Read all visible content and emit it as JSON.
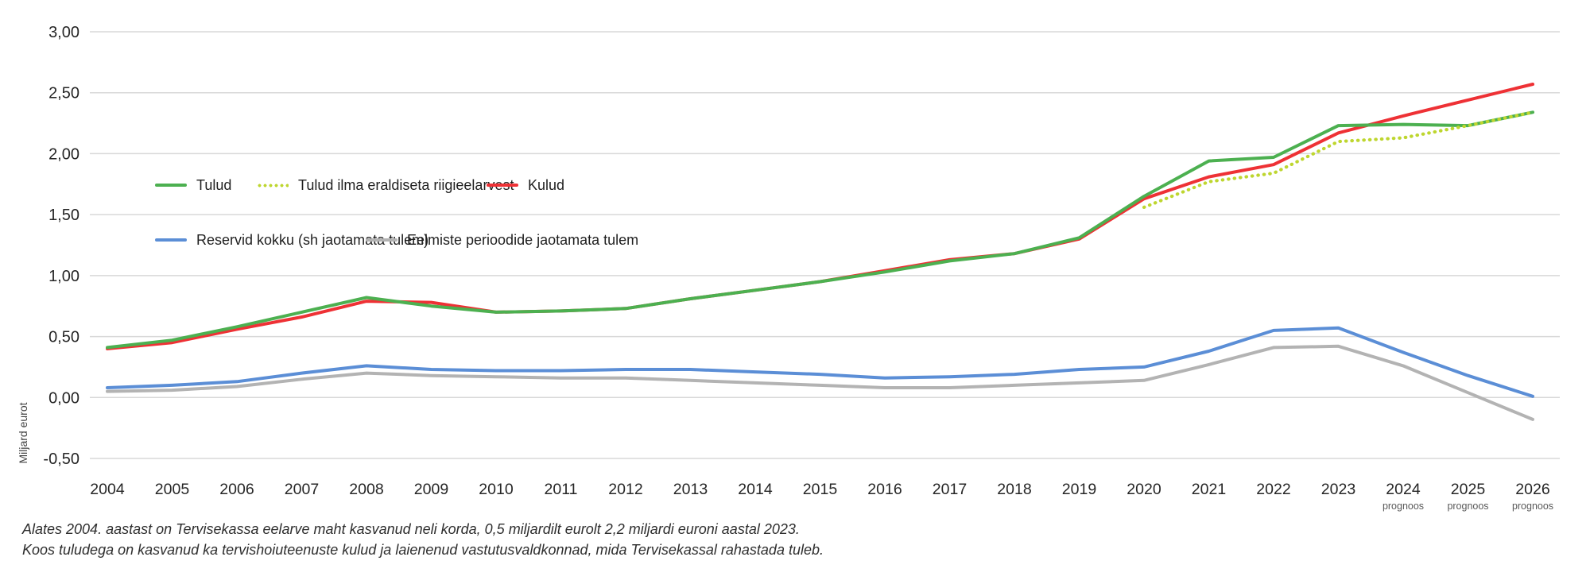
{
  "chart_data": {
    "type": "line",
    "title": "",
    "xlabel": "",
    "ylabel": "Miljard eurot",
    "ylim": [
      -0.5,
      3.0
    ],
    "grid": true,
    "legend_position": "inside-top-left",
    "yticks": [
      {
        "value": 3.0,
        "label": "3,00"
      },
      {
        "value": 2.5,
        "label": "2,50"
      },
      {
        "value": 2.0,
        "label": "2,00"
      },
      {
        "value": 1.5,
        "label": "1,50"
      },
      {
        "value": 1.0,
        "label": "1,00"
      },
      {
        "value": 0.5,
        "label": "0,50"
      },
      {
        "value": 0.0,
        "label": "0,00"
      },
      {
        "value": -0.5,
        "label": "-0,50"
      }
    ],
    "categories": [
      "2004",
      "2005",
      "2006",
      "2007",
      "2008",
      "2009",
      "2010",
      "2011",
      "2012",
      "2013",
      "2014",
      "2015",
      "2016",
      "2017",
      "2018",
      "2019",
      "2020",
      "2021",
      "2022",
      "2023",
      "2024",
      "2025",
      "2026"
    ],
    "forecast_note": "prognoos",
    "forecast_categories": [
      "2024",
      "2025",
      "2026"
    ],
    "series": [
      {
        "name": "Tulud",
        "color": "#4cb050",
        "dash": "solid",
        "values": [
          0.41,
          0.47,
          0.58,
          0.7,
          0.82,
          0.75,
          0.7,
          0.71,
          0.73,
          0.81,
          0.88,
          0.95,
          1.03,
          1.12,
          1.18,
          1.31,
          1.65,
          1.94,
          1.97,
          2.23,
          2.24,
          2.23,
          2.34
        ]
      },
      {
        "name": "Tulud ilma eraldiseta riigieelarvest",
        "color": "#bed62f",
        "dash": "dotted",
        "values": [
          null,
          null,
          null,
          null,
          null,
          null,
          null,
          null,
          null,
          null,
          null,
          null,
          null,
          null,
          null,
          null,
          1.56,
          1.77,
          1.84,
          2.1,
          2.13,
          2.23,
          2.34
        ]
      },
      {
        "name": "Kulud",
        "color": "#ee3135",
        "dash": "solid",
        "values": [
          0.4,
          0.45,
          0.56,
          0.66,
          0.79,
          0.78,
          0.7,
          0.71,
          0.73,
          0.81,
          0.88,
          0.95,
          1.04,
          1.13,
          1.18,
          1.3,
          1.63,
          1.81,
          1.91,
          2.17,
          2.31,
          2.44,
          2.57
        ]
      },
      {
        "name": "Reservid kokku (sh jaotamata tulem)",
        "color": "#5b8ed6",
        "dash": "solid",
        "values": [
          0.08,
          0.1,
          0.13,
          0.2,
          0.26,
          0.23,
          0.22,
          0.22,
          0.23,
          0.23,
          0.21,
          0.19,
          0.16,
          0.17,
          0.19,
          0.23,
          0.25,
          0.38,
          0.55,
          0.57,
          0.37,
          0.18,
          0.01
        ]
      },
      {
        "name": "Eelmiste perioodide jaotamata tulem",
        "color": "#b3b3b3",
        "dash": "solid",
        "values": [
          0.05,
          0.06,
          0.09,
          0.15,
          0.2,
          0.18,
          0.17,
          0.16,
          0.16,
          0.14,
          0.12,
          0.1,
          0.08,
          0.08,
          0.1,
          0.12,
          0.14,
          0.27,
          0.41,
          0.42,
          0.26,
          0.04,
          -0.18
        ]
      }
    ],
    "colors": {
      "gridline": "#d8d8d8",
      "tick_text": "#262626",
      "forecast_text": "#595959",
      "axis_title_text": "#404040"
    }
  },
  "footer": {
    "line1": "Alates 2004. aastast on Tervisekassa eelarve maht kasvanud neli korda, 0,5 miljardilt eurolt 2,2 miljardi euroni aastal 2023.",
    "line2": "Koos tuludega on kasvanud ka tervishoiuteenuste kulud ja laienenud vastutusvaldkonnad, mida Tervisekassal rahastada tuleb."
  }
}
